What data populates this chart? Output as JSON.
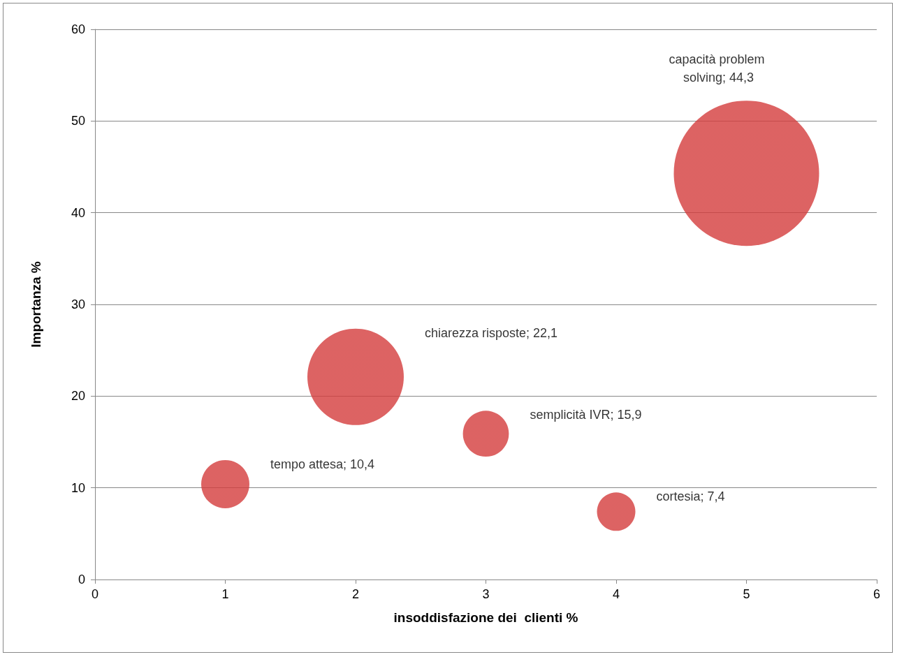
{
  "chart_data": {
    "type": "bubble",
    "xlabel": "insoddisfazione dei  clienti %",
    "ylabel": "Importanza %",
    "x": [
      1,
      2,
      3,
      4,
      5
    ],
    "values": [
      10.4,
      22.1,
      15.9,
      7.4,
      44.3
    ],
    "sizes": [
      0.11,
      0.44,
      0.1,
      0.07,
      1
    ],
    "value_labels": [
      "tempo attesa; 10,4",
      "chiarezza risposte; 22,1",
      "semplicità IVR; 15,9",
      "cortesia; 7,4",
      "capacità problem solving; 44,3"
    ],
    "color": "#d43c3c",
    "xlim": [
      0,
      6
    ],
    "xticks": [
      0,
      1,
      2,
      3,
      4,
      5,
      6
    ],
    "ylim": [
      0,
      60
    ],
    "yticks": [
      0,
      10,
      20,
      30,
      40,
      50,
      60
    ],
    "grid": "y"
  }
}
